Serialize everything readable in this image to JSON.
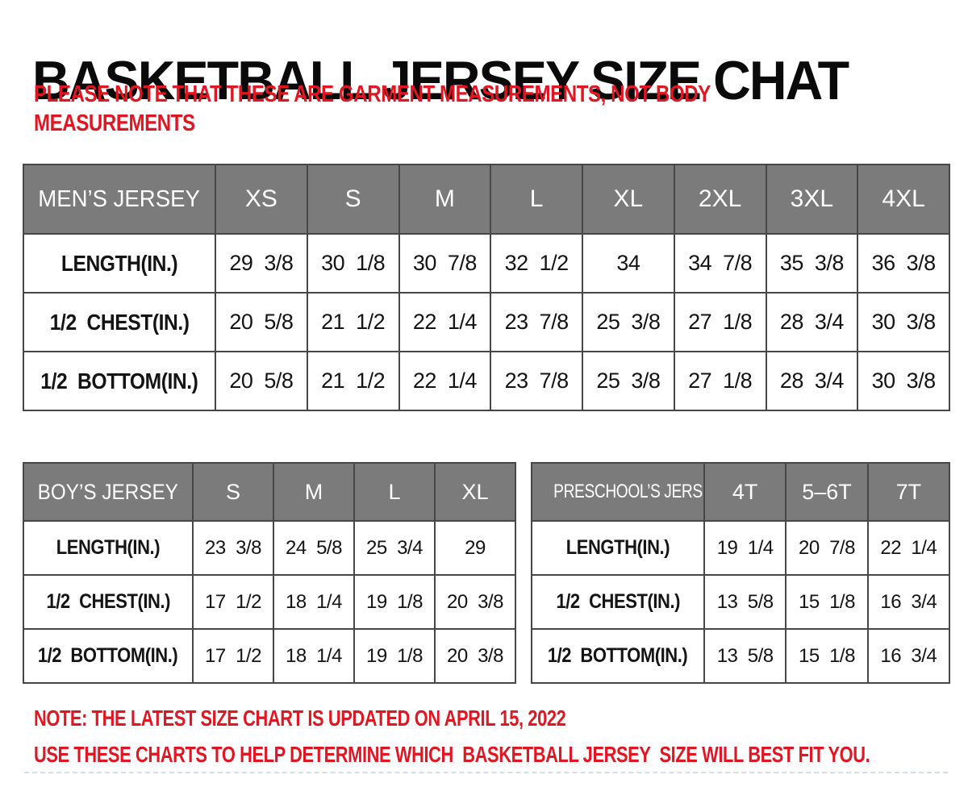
{
  "page": {
    "title": "BASKETBALL JERSEY SIZE CHAT",
    "subtitle_line1": "PLEASE NOTE THAT THESE ARE GARMENT MEASUREMENTS, NOT BODY",
    "subtitle_line2": "MEASUREMENTS",
    "note_line1": "NOTE: THE LATEST SIZE CHART IS UPDATED ON APRIL 15, 2022",
    "note_line2": "USE THESE CHARTS TO HELP DETERMINE WHICH  BASKETBALL JERSEY  SIZE WILL BEST FIT YOU.",
    "colors": {
      "accent_red": "#e01722",
      "header_gray": "#7b7b7b",
      "border_gray": "#474747",
      "text_black": "#141414"
    }
  },
  "tables": {
    "mens": {
      "title": "MEN’S JERSEY",
      "sizes": [
        "XS",
        "S",
        "M",
        "L",
        "XL",
        "2XL",
        "3XL",
        "4XL"
      ],
      "rows": [
        {
          "label": "LENGTH(IN.)",
          "values": [
            "29  3/8",
            "30  1/8",
            "30  7/8",
            "32  1/2",
            "34",
            "34  7/8",
            "35  3/8",
            "36  3/8"
          ]
        },
        {
          "label": "1/2  CHEST(IN.)",
          "values": [
            "20  5/8",
            "21  1/2",
            "22  1/4",
            "23  7/8",
            "25  3/8",
            "27  1/8",
            "28  3/4",
            "30  3/8"
          ]
        },
        {
          "label": "1/2  BOTTOM(IN.)",
          "values": [
            "20  5/8",
            "21  1/2",
            "22  1/4",
            "23  7/8",
            "25  3/8",
            "27  1/8",
            "28  3/4",
            "30  3/8"
          ]
        }
      ]
    },
    "boys": {
      "title": "BOY’S JERSEY",
      "sizes": [
        "S",
        "M",
        "L",
        "XL"
      ],
      "rows": [
        {
          "label": "LENGTH(IN.)",
          "values": [
            "23  3/8",
            "24  5/8",
            "25  3/4",
            "29"
          ]
        },
        {
          "label": "1/2  CHEST(IN.)",
          "values": [
            "17  1/2",
            "18  1/4",
            "19  1/8",
            "20  3/8"
          ]
        },
        {
          "label": "1/2  BOTTOM(IN.)",
          "values": [
            "17  1/2",
            "18  1/4",
            "19  1/8",
            "20  3/8"
          ]
        }
      ]
    },
    "preschool": {
      "title": "PRESCHOOL’S JERSEY",
      "sizes": [
        "4T",
        "5–6T",
        "7T"
      ],
      "rows": [
        {
          "label": "LENGTH(IN.)",
          "values": [
            "19  1/4",
            "20  7/8",
            "22  1/4"
          ]
        },
        {
          "label": "1/2  CHEST(IN.)",
          "values": [
            "13  5/8",
            "15  1/8",
            "16  3/4"
          ]
        },
        {
          "label": "1/2  BOTTOM(IN.)",
          "values": [
            "13  5/8",
            "15  1/8",
            "16  3/4"
          ]
        }
      ]
    }
  }
}
